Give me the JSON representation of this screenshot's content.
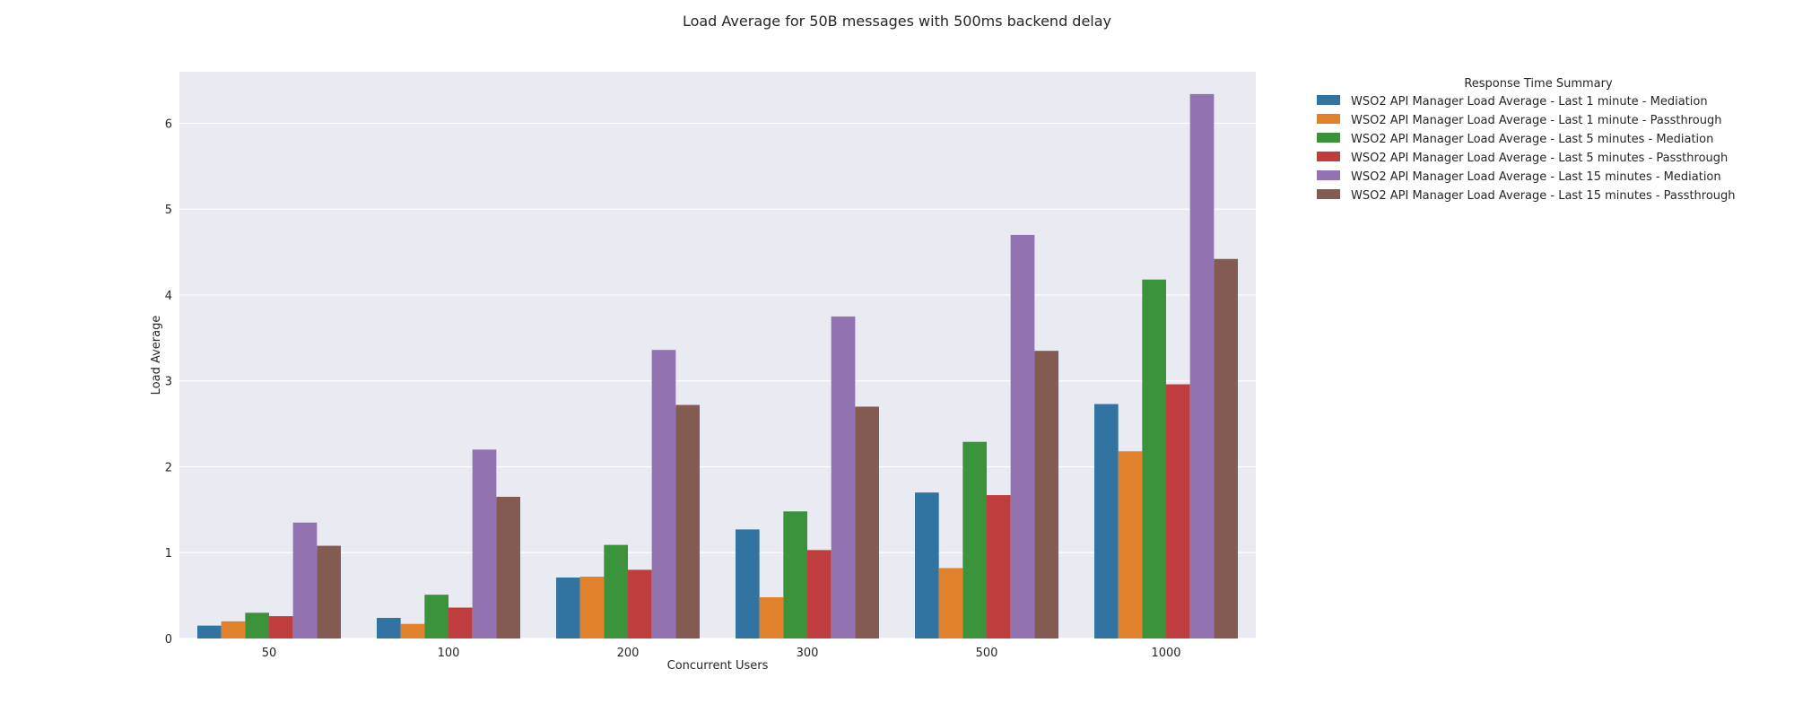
{
  "chart_data": {
    "type": "bar",
    "title": "Load Average for 50B messages with 500ms backend delay",
    "xlabel": "Concurrent Users",
    "ylabel": "Load Average",
    "categories": [
      "50",
      "100",
      "200",
      "300",
      "500",
      "1000"
    ],
    "ylim": [
      0,
      6.6
    ],
    "yticks": [
      0,
      1,
      2,
      3,
      4,
      5,
      6
    ],
    "grid": true,
    "legend": {
      "title": "Response Time Summary",
      "placement": "outside-top-right"
    },
    "series": [
      {
        "name": "WSO2 API Manager Load Average - Last 1 minute - Mediation",
        "color": "#3274a1",
        "values": [
          0.15,
          0.24,
          0.71,
          1.27,
          1.7,
          2.73
        ]
      },
      {
        "name": "WSO2 API Manager Load Average - Last 1 minute - Passthrough",
        "color": "#e1812c",
        "values": [
          0.2,
          0.17,
          0.72,
          0.48,
          0.82,
          2.18
        ]
      },
      {
        "name": "WSO2 API Manager Load Average - Last 5 minutes - Mediation",
        "color": "#3a923a",
        "values": [
          0.3,
          0.51,
          1.09,
          1.48,
          2.29,
          4.18
        ]
      },
      {
        "name": "WSO2 API Manager Load Average - Last 5 minutes - Passthrough",
        "color": "#c03d3e",
        "values": [
          0.26,
          0.36,
          0.8,
          1.03,
          1.67,
          2.96
        ]
      },
      {
        "name": "WSO2 API Manager Load Average - Last 15 minutes - Mediation",
        "color": "#9372b2",
        "values": [
          1.35,
          2.2,
          3.36,
          3.75,
          4.7,
          6.34
        ]
      },
      {
        "name": "WSO2 API Manager Load Average - Last 15 minutes - Passthrough",
        "color": "#845b53",
        "values": [
          1.08,
          1.65,
          2.72,
          2.7,
          3.35,
          4.42
        ]
      }
    ]
  }
}
